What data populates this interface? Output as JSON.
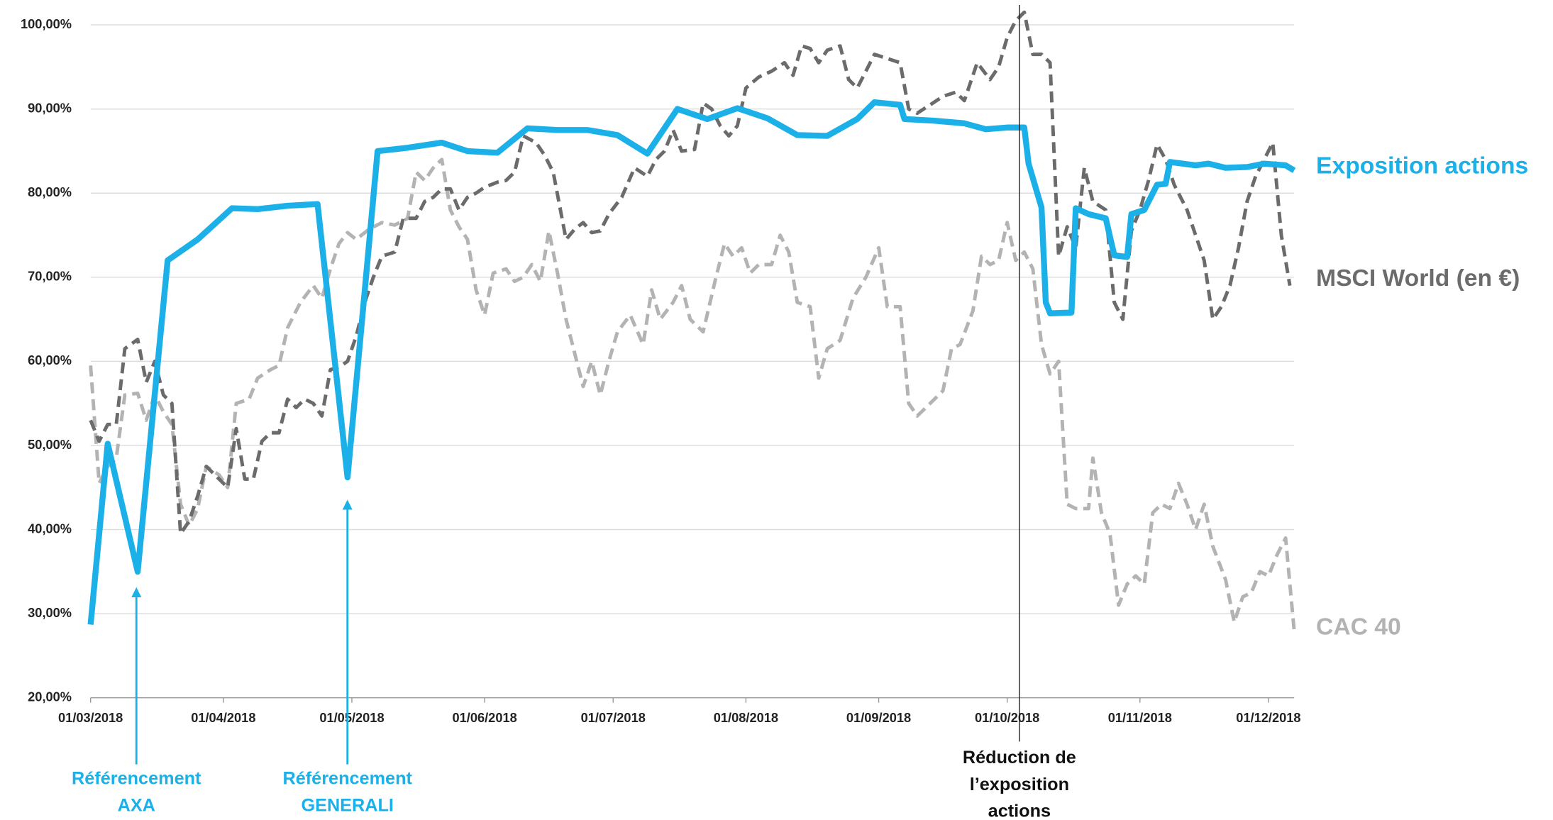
{
  "chart_data": {
    "type": "line",
    "xlim": [
      "01/03/2018",
      "07/12/2018"
    ],
    "xticks": [
      "01/03/2018",
      "01/04/2018",
      "01/05/2018",
      "01/06/2018",
      "01/07/2018",
      "01/08/2018",
      "01/09/2018",
      "01/10/2018",
      "01/11/2018",
      "01/12/2018"
    ],
    "ylim": [
      20,
      100
    ],
    "yticks": [
      {
        "value": 20,
        "label": "20,00%"
      },
      {
        "value": 30,
        "label": "30,00%"
      },
      {
        "value": 40,
        "label": "40,00%"
      },
      {
        "value": 50,
        "label": "50,00%"
      },
      {
        "value": 60,
        "label": "60,00%"
      },
      {
        "value": 70,
        "label": "70,00%"
      },
      {
        "value": 80,
        "label": "80,00%"
      },
      {
        "value": 90,
        "label": "90,00%"
      },
      {
        "value": 100,
        "label": "100,00%"
      }
    ],
    "grid": true,
    "series": [
      {
        "name": "Exposition actions",
        "color": "#1cb0e8",
        "dashed": false,
        "x": [
          "01/03/2018",
          "05/03/2018",
          "12/03/2018",
          "19/03/2018",
          "26/03/2018",
          "03/04/2018",
          "09/04/2018",
          "16/04/2018",
          "23/04/2018",
          "30/04/2018",
          "07/05/2018",
          "14/05/2018",
          "22/05/2018",
          "28/05/2018",
          "04/06/2018",
          "11/06/2018",
          "18/06/2018",
          "25/06/2018",
          "02/07/2018",
          "09/07/2018",
          "16/07/2018",
          "23/07/2018",
          "30/07/2018",
          "06/08/2018",
          "13/08/2018",
          "20/08/2018",
          "27/08/2018",
          "31/08/2018",
          "06/09/2018",
          "07/09/2018",
          "14/09/2018",
          "21/09/2018",
          "26/09/2018",
          "01/10/2018",
          "05/10/2018",
          "06/10/2018",
          "09/10/2018",
          "10/10/2018",
          "11/10/2018",
          "16/10/2018",
          "17/10/2018",
          "20/10/2018",
          "24/10/2018",
          "26/10/2018",
          "29/10/2018",
          "30/10/2018",
          "02/11/2018",
          "05/11/2018",
          "07/11/2018",
          "08/11/2018",
          "14/11/2018",
          "17/11/2018",
          "21/11/2018",
          "26/11/2018",
          "30/11/2018",
          "05/12/2018",
          "07/12/2018"
        ],
        "values": [
          28.7,
          50.2,
          35,
          72,
          74.5,
          78.2,
          78.1,
          78.5,
          78.7,
          46.2,
          85,
          85.4,
          86,
          85,
          84.8,
          87.7,
          87.5,
          87.5,
          86.9,
          84.7,
          90,
          88.8,
          90.1,
          88.9,
          86.9,
          86.8,
          88.8,
          90.8,
          90.5,
          88.8,
          88.6,
          88.3,
          87.6,
          87.8,
          87.8,
          83.5,
          78.3,
          67,
          65.7,
          65.8,
          78.2,
          77.5,
          77,
          72.6,
          72.4,
          77.5,
          78,
          81,
          81.1,
          83.7,
          83.3,
          83.5,
          83,
          83.1,
          83.5,
          83.3,
          82.7
        ]
      },
      {
        "name": "MSCI World (en €)",
        "color": "#6b6b6b",
        "dashed": true,
        "x": [
          "01/03/2018",
          "03/03/2018",
          "05/03/2018",
          "07/03/2018",
          "09/03/2018",
          "12/03/2018",
          "14/03/2018",
          "16/03/2018",
          "18/03/2018",
          "20/03/2018",
          "22/03/2018",
          "24/03/2018",
          "26/03/2018",
          "28/03/2018",
          "31/03/2018",
          "02/04/2018",
          "04/04/2018",
          "06/04/2018",
          "08/04/2018",
          "10/04/2018",
          "12/04/2018",
          "14/04/2018",
          "16/04/2018",
          "18/04/2018",
          "20/04/2018",
          "22/04/2018",
          "24/04/2018",
          "26/04/2018",
          "28/04/2018",
          "30/04/2018",
          "02/05/2018",
          "04/05/2018",
          "06/05/2018",
          "08/05/2018",
          "11/05/2018",
          "13/05/2018",
          "16/05/2018",
          "18/05/2018",
          "20/05/2018",
          "22/05/2018",
          "24/05/2018",
          "26/05/2018",
          "28/05/2018",
          "30/05/2018",
          "01/06/2018",
          "04/06/2018",
          "06/06/2018",
          "08/06/2018",
          "10/06/2018",
          "13/06/2018",
          "15/06/2018",
          "17/06/2018",
          "20/06/2018",
          "22/06/2018",
          "24/06/2018",
          "26/06/2018",
          "28/06/2018",
          "30/06/2018",
          "03/07/2018",
          "06/07/2018",
          "09/07/2018",
          "11/07/2018",
          "13/07/2018",
          "15/07/2018",
          "17/07/2018",
          "20/07/2018",
          "22/07/2018",
          "24/07/2018",
          "26/07/2018",
          "28/07/2018",
          "30/07/2018",
          "01/08/2018",
          "04/08/2018",
          "07/08/2018",
          "10/08/2018",
          "12/08/2018",
          "14/08/2018",
          "16/08/2018",
          "18/08/2018",
          "20/08/2018",
          "23/08/2018",
          "25/08/2018",
          "27/08/2018",
          "29/08/2018",
          "31/08/2018",
          "03/09/2018",
          "06/09/2018",
          "08/09/2018",
          "10/09/2018",
          "13/09/2018",
          "16/09/2018",
          "19/09/2018",
          "21/09/2018",
          "24/09/2018",
          "27/09/2018",
          "29/09/2018",
          "01/10/2018",
          "03/10/2018",
          "05/10/2018",
          "07/10/2018",
          "09/10/2018",
          "11/10/2018",
          "13/10/2018",
          "15/10/2018",
          "17/10/2018",
          "19/10/2018",
          "21/10/2018",
          "24/10/2018",
          "26/10/2018",
          "28/10/2018",
          "30/10/2018",
          "01/11/2018",
          "03/11/2018",
          "05/11/2018",
          "07/11/2018",
          "09/11/2018",
          "12/11/2018",
          "14/11/2018",
          "16/11/2018",
          "18/11/2018",
          "20/11/2018",
          "22/11/2018",
          "24/11/2018",
          "26/11/2018",
          "28/11/2018",
          "30/11/2018",
          "02/12/2018",
          "04/12/2018",
          "06/12/2018"
        ],
        "values": [
          53,
          50.5,
          52.5,
          52.5,
          61.5,
          62.6,
          57.5,
          60,
          56,
          55,
          39.5,
          41,
          44,
          47.5,
          46,
          45,
          52,
          46,
          46,
          50.5,
          51.5,
          51.5,
          55.5,
          54.5,
          55.5,
          55,
          53.5,
          59,
          59.3,
          60,
          63,
          67,
          70,
          72.5,
          73,
          77,
          77,
          79,
          79.5,
          80.5,
          80.5,
          78,
          79.5,
          80,
          80.7,
          81.3,
          81.5,
          82.5,
          86.8,
          86,
          84.5,
          82.5,
          74.5,
          75.7,
          76.5,
          75.3,
          75.5,
          77.5,
          79.5,
          83,
          82,
          84,
          85,
          87.5,
          85,
          85.2,
          90.7,
          90,
          88,
          86.8,
          88,
          92.5,
          93.8,
          94.5,
          95.5,
          94,
          97.5,
          97.2,
          95.5,
          97,
          97.5,
          93.5,
          92.5,
          94.5,
          96.5,
          96,
          95.5,
          90,
          89.5,
          90.5,
          91.5,
          92,
          91,
          95.5,
          93.5,
          95,
          98.5,
          100.5,
          101.5,
          96.5,
          96.5,
          95.5,
          72.5,
          76,
          73.5,
          83,
          79,
          78,
          67,
          65,
          75.5,
          78,
          81.5,
          85.8,
          84,
          81,
          78,
          75,
          72,
          65,
          66.5,
          69,
          73.5,
          79,
          82,
          84,
          86,
          75,
          69
        ]
      },
      {
        "name": "CAC 40",
        "color": "#b3b3b3",
        "dashed": true,
        "x": [
          "01/03/2018",
          "03/03/2018",
          "05/03/2018",
          "07/03/2018",
          "09/03/2018",
          "12/03/2018",
          "14/03/2018",
          "16/03/2018",
          "18/03/2018",
          "20/03/2018",
          "22/03/2018",
          "24/03/2018",
          "26/03/2018",
          "28/03/2018",
          "31/03/2018",
          "02/04/2018",
          "04/04/2018",
          "07/04/2018",
          "09/04/2018",
          "12/04/2018",
          "14/04/2018",
          "16/04/2018",
          "19/04/2018",
          "22/04/2018",
          "24/04/2018",
          "26/04/2018",
          "28/04/2018",
          "30/04/2018",
          "02/05/2018",
          "05/05/2018",
          "08/05/2018",
          "11/05/2018",
          "14/05/2018",
          "16/05/2018",
          "18/05/2018",
          "20/05/2018",
          "22/05/2018",
          "24/05/2018",
          "26/05/2018",
          "28/05/2018",
          "30/05/2018",
          "01/06/2018",
          "03/06/2018",
          "06/06/2018",
          "08/06/2018",
          "10/06/2018",
          "12/06/2018",
          "14/06/2018",
          "16/06/2018",
          "18/06/2018",
          "20/06/2018",
          "22/06/2018",
          "24/06/2018",
          "26/06/2018",
          "28/06/2018",
          "30/06/2018",
          "02/07/2018",
          "05/07/2018",
          "08/07/2018",
          "10/07/2018",
          "12/07/2018",
          "15/07/2018",
          "17/07/2018",
          "19/07/2018",
          "22/07/2018",
          "25/07/2018",
          "27/07/2018",
          "29/07/2018",
          "31/07/2018",
          "02/08/2018",
          "04/08/2018",
          "07/08/2018",
          "09/08/2018",
          "11/08/2018",
          "13/08/2018",
          "16/08/2018",
          "18/08/2018",
          "20/08/2018",
          "23/08/2018",
          "26/08/2018",
          "29/08/2018",
          "01/09/2018",
          "03/09/2018",
          "06/09/2018",
          "08/09/2018",
          "10/09/2018",
          "13/09/2018",
          "16/09/2018",
          "18/09/2018",
          "20/09/2018",
          "23/09/2018",
          "25/09/2018",
          "27/09/2018",
          "29/09/2018",
          "01/10/2018",
          "03/10/2018",
          "05/10/2018",
          "07/10/2018",
          "09/10/2018",
          "11/10/2018",
          "13/10/2018",
          "15/10/2018",
          "17/10/2018",
          "20/10/2018",
          "21/10/2018",
          "23/10/2018",
          "25/10/2018",
          "27/10/2018",
          "29/10/2018",
          "31/10/2018",
          "02/11/2018",
          "04/11/2018",
          "06/11/2018",
          "08/11/2018",
          "10/11/2018",
          "12/11/2018",
          "14/11/2018",
          "16/11/2018",
          "18/11/2018",
          "21/11/2018",
          "23/11/2018",
          "25/11/2018",
          "27/11/2018",
          "29/11/2018",
          "01/12/2018",
          "03/12/2018",
          "05/12/2018",
          "07/12/2018"
        ],
        "values": [
          59.5,
          45.5,
          47.5,
          48.5,
          56,
          56.2,
          53,
          56,
          54,
          52.5,
          43,
          40.5,
          42.5,
          47.5,
          46.5,
          45,
          55,
          55.5,
          58,
          59,
          59.5,
          64,
          67,
          69,
          67.5,
          71,
          74,
          75.3,
          74.5,
          75.7,
          76.5,
          76.2,
          77,
          82.5,
          81.5,
          83,
          84,
          78,
          76,
          74.5,
          68.5,
          65.5,
          70.5,
          71,
          69.5,
          70,
          71.5,
          69.5,
          75.5,
          70.5,
          65,
          61,
          57,
          60,
          56,
          60,
          63.5,
          65.5,
          62,
          68.5,
          65,
          67,
          69,
          65,
          63.5,
          70,
          74,
          72.5,
          73.5,
          70.5,
          71.5,
          71.5,
          75,
          73,
          67,
          66.5,
          58,
          61.5,
          62.5,
          67.5,
          70,
          73.5,
          66.5,
          66.5,
          55,
          53.5,
          55,
          56.5,
          61.5,
          62,
          66,
          72.5,
          71.5,
          72,
          76.5,
          72,
          73,
          71,
          62,
          58.5,
          60,
          43,
          42.5,
          42.5,
          48.5,
          42,
          39.5,
          31,
          33.5,
          34.5,
          33.5,
          42,
          43,
          42.5,
          45.5,
          43,
          40,
          43,
          38,
          34,
          29,
          32,
          32.5,
          35,
          34.5,
          37,
          39,
          28
        ]
      }
    ],
    "annotations": [
      {
        "text": [
          "Référencement",
          "AXA"
        ],
        "color": "#1cb0e8"
      },
      {
        "text": [
          "Référencement",
          "GENERALI"
        ],
        "color": "#1cb0e8"
      },
      {
        "text": [
          "Réduction de",
          "l’exposition",
          "actions"
        ],
        "color": "#111111"
      }
    ]
  }
}
